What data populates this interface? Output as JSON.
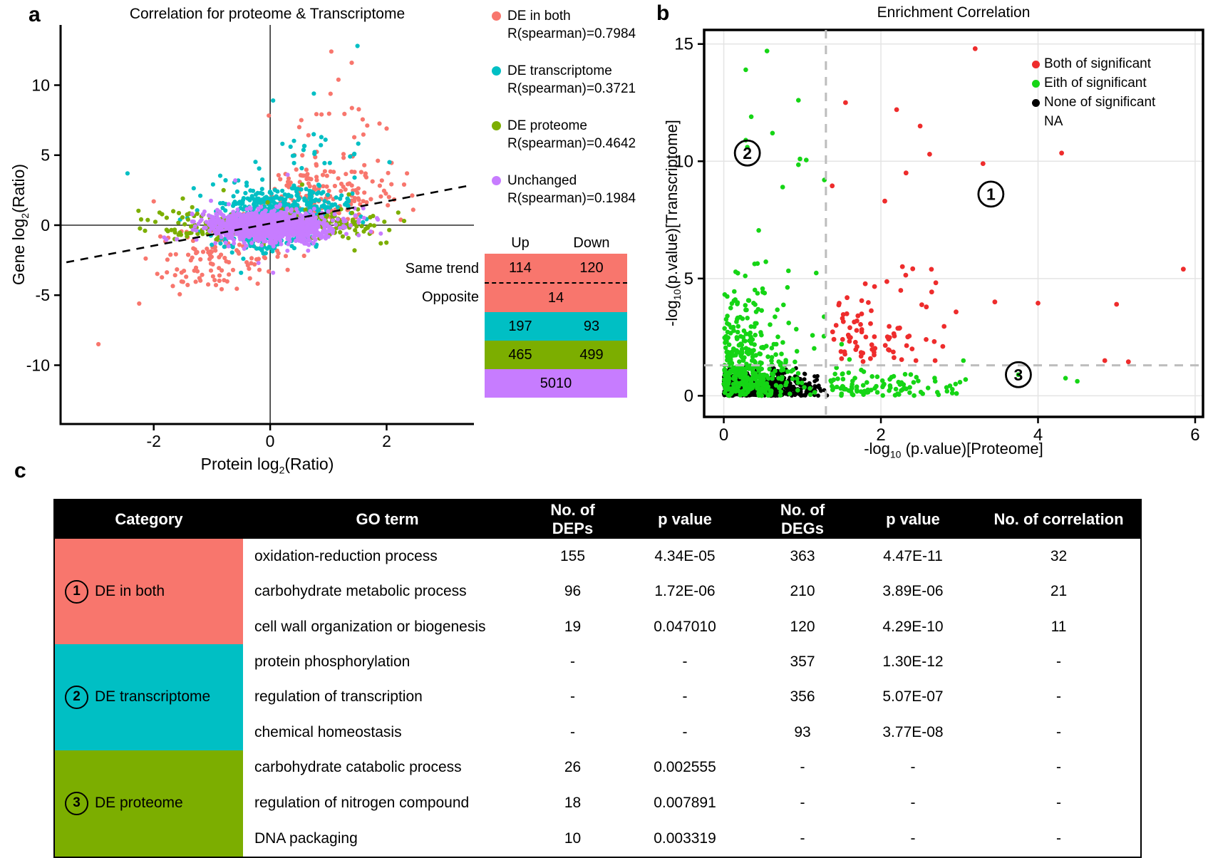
{
  "figure_labels": {
    "a": "a",
    "b": "b",
    "c": "c"
  },
  "colors": {
    "salmon": "#F8766D",
    "cyan": "#00BFC4",
    "olive": "#7CAE00",
    "purple": "#C77CFF",
    "red": "#EE2C2C",
    "green": "#15D515",
    "black": "#000000",
    "grid": "#E4E4E4",
    "threshold_dash": "#BDBDBD",
    "header_bg": "#000000",
    "header_text": "#FFFFFF"
  },
  "chart_data": [
    {
      "id": "panel-a",
      "type": "scatter",
      "title": "Correlation for proteome & Transcriptome",
      "xlabel": {
        "pre": "Protein log",
        "sub": "2",
        "post": "(Ratio)"
      },
      "ylabel": {
        "pre": "Gene log",
        "sub": "2",
        "post": "(Ratio)"
      },
      "xlim": [
        -3.6,
        3.5
      ],
      "ylim": [
        -14.2,
        14.3
      ],
      "xticks": [
        -2,
        0,
        2
      ],
      "yticks": [
        -10,
        -5,
        0,
        5,
        10
      ],
      "zero_lines": true,
      "trendline": {
        "x1": -3.5,
        "y1": -2.65,
        "x2": 3.45,
        "y2": 2.85,
        "style": "dashed"
      },
      "legend": [
        {
          "label": "DE in both",
          "r": "R(spearman)=0.7984",
          "color_key": "salmon"
        },
        {
          "label": "DE transcriptome",
          "r": "R(spearman)=0.3721",
          "color_key": "cyan"
        },
        {
          "label": "DE proteome",
          "r": "R(spearman)=0.4642",
          "color_key": "olive"
        },
        {
          "label": "Unchanged",
          "r": "R(spearman)=0.1984",
          "color_key": "purple"
        }
      ],
      "series": [
        {
          "name": "DE in both",
          "color_key": "salmon",
          "r": 3.1,
          "clusters": [
            {
              "n": 165,
              "cx": 0.95,
              "cy": 2.3,
              "sx": 0.62,
              "sy": 1.35,
              "ymin": 0.3,
              "ymax": 6.3
            },
            {
              "n": 110,
              "cx": -0.95,
              "cy": -2.3,
              "sx": 0.55,
              "sy": 1.2,
              "ymin": -6.0,
              "ymax": -0.4
            },
            {
              "n": 16,
              "cx": 1.15,
              "cy": 7.4,
              "sx": 0.55,
              "sy": 1.5,
              "ymin": 6.2,
              "ymax": 10.6
            }
          ],
          "outliers": [
            [
              1.05,
              12.4
            ],
            [
              1.4,
              11.6
            ],
            [
              0.5,
              7.0
            ],
            [
              2.0,
              6.9
            ],
            [
              -2.95,
              -8.5
            ],
            [
              -2.25,
              -5.6
            ],
            [
              2.35,
              3.7
            ],
            [
              1.85,
              4.6
            ],
            [
              2.3,
              2.9
            ],
            [
              -2.0,
              1.7
            ],
            [
              -1.75,
              -0.9
            ],
            [
              1.75,
              -0.5
            ]
          ]
        },
        {
          "name": "DE transcriptome",
          "color_key": "cyan",
          "r": 3.1,
          "clusters": [
            {
              "n": 320,
              "cx": 0.15,
              "cy": 1.25,
              "sx": 0.55,
              "sy": 0.75,
              "ymin": 0.15,
              "ymax": 4.0
            },
            {
              "n": 85,
              "cx": -0.15,
              "cy": -1.15,
              "sx": 0.5,
              "sy": 0.62,
              "ymin": -3.1,
              "ymax": -0.15
            },
            {
              "n": 22,
              "cx": 0.6,
              "cy": 4.8,
              "sx": 0.5,
              "sy": 1.1,
              "ymin": 3.6,
              "ymax": 7.2
            }
          ],
          "outliers": [
            [
              1.5,
              12.8
            ],
            [
              0.05,
              8.9
            ],
            [
              0.75,
              9.4
            ],
            [
              -2.45,
              3.7
            ],
            [
              0.95,
              6.1
            ],
            [
              0.35,
              5.6
            ],
            [
              1.45,
              3.4
            ],
            [
              -0.5,
              -3.4
            ],
            [
              -1.2,
              2.1
            ],
            [
              2.05,
              4.5
            ]
          ]
        },
        {
          "name": "DE proteome",
          "color_key": "olive",
          "r": 3.1,
          "clusters": [
            {
              "n": 135,
              "cx": 0.95,
              "cy": 0.05,
              "sx": 0.52,
              "sy": 0.5,
              "ymin": -2,
              "ymax": 2
            },
            {
              "n": 115,
              "cx": -0.95,
              "cy": -0.05,
              "sx": 0.52,
              "sy": 0.5,
              "ymin": -2,
              "ymax": 2
            }
          ],
          "outliers": [
            [
              0.55,
              2.9
            ],
            [
              -1.5,
              1.9
            ],
            [
              2.2,
              0.9
            ],
            [
              1.9,
              -1.3
            ],
            [
              -2.15,
              -0.4
            ],
            [
              1.35,
              2.2
            ],
            [
              -0.8,
              2.5
            ],
            [
              2.3,
              0.3
            ],
            [
              -1.9,
              0.9
            ],
            [
              1.45,
              -1.8
            ]
          ]
        },
        {
          "name": "Unchanged",
          "color_key": "purple",
          "r": 3.0,
          "clusters": [
            {
              "n": 1300,
              "cx": 0,
              "cy": -0.05,
              "sx": 0.5,
              "sy": 0.55,
              "xmin": -2.3,
              "xmax": 2.3,
              "ymin": -3.2,
              "ymax": 3.4
            }
          ],
          "outliers": [
            [
              0.3,
              3.6
            ],
            [
              -0.6,
              3.2
            ],
            [
              1.9,
              -0.6
            ],
            [
              -1.6,
              -1.0
            ],
            [
              1.6,
              1.2
            ],
            [
              -0.2,
              -2.7
            ],
            [
              0.05,
              -3.4
            ],
            [
              1.85,
              0.4
            ]
          ]
        }
      ],
      "inset_table": {
        "col_headers": [
          "Up",
          "Down"
        ],
        "row_labels": [
          "Same trend",
          "Opposite"
        ],
        "rows": [
          {
            "color_key": "salmon",
            "cells": [
              "114",
              "120"
            ]
          },
          {
            "color_key": "salmon",
            "cells": [
              "14"
            ],
            "dashed_top": true
          },
          {
            "color_key": "cyan",
            "cells": [
              "197",
              "93"
            ]
          },
          {
            "color_key": "olive",
            "cells": [
              "465",
              "499"
            ]
          },
          {
            "color_key": "purple",
            "cells": [
              "5010"
            ]
          }
        ]
      }
    },
    {
      "id": "panel-b",
      "type": "scatter",
      "title": "Enrichment Correlation",
      "xlabel": {
        "pre": "-log",
        "sub": "10",
        "post": " (p.value)[Proteome]"
      },
      "ylabel": {
        "pre": "-log",
        "sub": "10",
        "post": "(p.value)[Transcriptome]"
      },
      "xlim": [
        -0.25,
        6.1
      ],
      "ylim": [
        -0.9,
        15.6
      ],
      "xticks": [
        0,
        2,
        4,
        6
      ],
      "yticks": [
        0,
        5,
        10,
        15
      ],
      "grid": true,
      "thresholds": {
        "x": 1.3,
        "y": 1.3
      },
      "legend": [
        {
          "label": "Both of significant",
          "color_key": "red"
        },
        {
          "label": "Eith of significant",
          "color_key": "green"
        },
        {
          "label": "None of significant",
          "color_key": "black"
        },
        {
          "label": "NA",
          "color_key": null
        }
      ],
      "region_labels": [
        {
          "num": "1",
          "x": 3.4,
          "y": 8.6
        },
        {
          "num": "2",
          "x": 0.3,
          "y": 10.35
        },
        {
          "num": "3",
          "x": 3.75,
          "y": 0.9
        }
      ],
      "series": [
        {
          "name": "None of significant",
          "color_key": "black",
          "r": 2.9,
          "clusters": [
            {
              "n": 680,
              "cx": 0,
              "cy": 0,
              "sx": 0.55,
              "sy": 0.5,
              "absx": true,
              "absy": true,
              "xmax": 1.32,
              "ymax": 1.22
            }
          ],
          "outliers": []
        },
        {
          "name": "Eith of significant",
          "color_key": "green",
          "r": 3.3,
          "clusters": [
            {
              "n": 280,
              "cx": 0,
              "cy": 0,
              "sx": 0.42,
              "sy": 2.3,
              "absx": true,
              "absy": true,
              "xmax": 1.32,
              "ymax": 8.3
            },
            {
              "n": 130,
              "cx": 0,
              "cy": 0,
              "sx": 0.45,
              "sy": 0.85,
              "absx": true,
              "absy": true,
              "xmax": 1.32,
              "ymax": 2.6
            },
            {
              "n": 95,
              "cx": 1.36,
              "cy": 0,
              "sx": 0.8,
              "sy": 0.52,
              "absx": true,
              "absy": true,
              "xmax": 4.75,
              "ymax": 1.28
            }
          ],
          "outliers": [
            [
              0.55,
              14.7
            ],
            [
              0.28,
              13.9
            ],
            [
              0.95,
              12.6
            ],
            [
              0.35,
              11.9
            ],
            [
              0.62,
              11.2
            ],
            [
              0.28,
              10.9
            ],
            [
              0.3,
              10.6
            ],
            [
              0.97,
              10.1
            ],
            [
              1.05,
              10.05
            ],
            [
              0.95,
              9.85
            ],
            [
              1.28,
              9.2
            ],
            [
              0.75,
              8.9
            ],
            [
              1.6,
              1.55
            ],
            [
              3.05,
              1.5
            ],
            [
              4.35,
              0.75
            ],
            [
              4.5,
              0.62
            ],
            [
              2.95,
              0.5
            ],
            [
              3.75,
              0.9
            ],
            [
              1.5,
              2.2
            ],
            [
              1.75,
              1.1
            ]
          ]
        },
        {
          "name": "Both of significant",
          "color_key": "red",
          "r": 3.4,
          "clusters": [
            {
              "n": 85,
              "cx": 1.38,
              "cy": 1.4,
              "sx": 0.75,
              "sy": 1.7,
              "absx": true,
              "absy": true,
              "xmax": 4.3,
              "ymax": 9.2
            }
          ],
          "outliers": [
            [
              3.2,
              14.8
            ],
            [
              1.55,
              12.5
            ],
            [
              2.2,
              12.2
            ],
            [
              2.5,
              11.5
            ],
            [
              2.62,
              10.3
            ],
            [
              4.3,
              10.35
            ],
            [
              3.3,
              9.9
            ],
            [
              2.32,
              9.5
            ],
            [
              2.05,
              8.3
            ],
            [
              1.38,
              8.95
            ],
            [
              5.85,
              5.4
            ],
            [
              5.0,
              3.9
            ],
            [
              4.0,
              3.95
            ],
            [
              3.45,
              4.0
            ],
            [
              5.15,
              1.45
            ],
            [
              4.85,
              1.5
            ]
          ]
        }
      ]
    }
  ],
  "table_c": {
    "columns": [
      "Category",
      "GO term",
      "No. of DEPs",
      "p value",
      "No. of DEGs",
      "p value",
      "No. of correlation"
    ],
    "groups": [
      {
        "num": "1",
        "label": "DE in both",
        "color_key": "salmon",
        "rows": [
          [
            "oxidation-reduction process",
            "155",
            "4.34E-05",
            "363",
            "4.47E-11",
            "32"
          ],
          [
            "carbohydrate metabolic process",
            "96",
            "1.72E-06",
            "210",
            "3.89E-06",
            "21"
          ],
          [
            "cell wall organization or biogenesis",
            "19",
            "0.047010",
            "120",
            "4.29E-10",
            "11"
          ]
        ]
      },
      {
        "num": "2",
        "label": "DE transcriptome",
        "color_key": "cyan",
        "rows": [
          [
            "protein phosphorylation",
            "-",
            "-",
            "357",
            "1.30E-12",
            "-"
          ],
          [
            "regulation of transcription",
            "-",
            "-",
            "356",
            "5.07E-07",
            "-"
          ],
          [
            "chemical homeostasis",
            "-",
            "-",
            "93",
            "3.77E-08",
            "-"
          ]
        ]
      },
      {
        "num": "3",
        "label": "DE proteome",
        "color_key": "olive",
        "rows": [
          [
            "carbohydrate catabolic process",
            "26",
            "0.002555",
            "-",
            "-",
            "-"
          ],
          [
            "regulation of nitrogen compound",
            "18",
            "0.007891",
            "-",
            "-",
            "-"
          ],
          [
            "DNA packaging",
            "10",
            "0.003319",
            "-",
            "-",
            "-"
          ]
        ]
      }
    ]
  }
}
